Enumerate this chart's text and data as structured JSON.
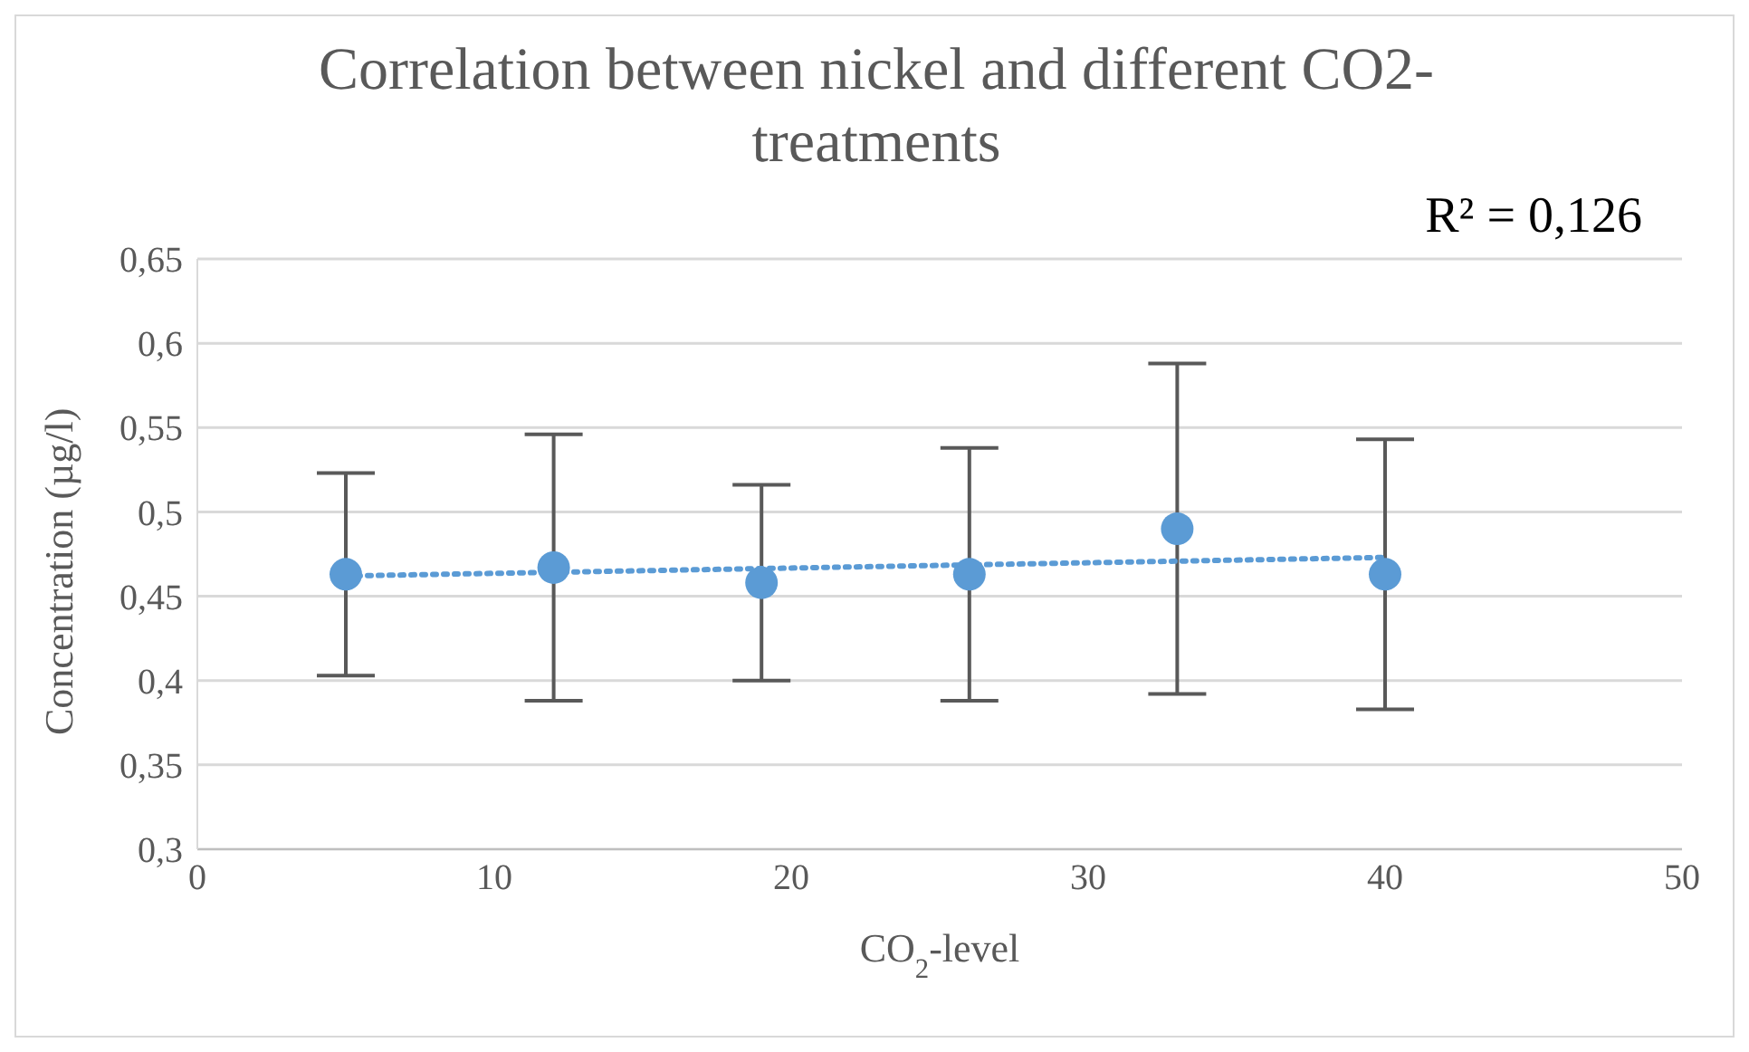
{
  "chart_data": {
    "type": "scatter",
    "title": "Correlation between nickel and different CO2-treatments",
    "xlabel": "CO$_{2}$-level",
    "ylabel": "Concentration (µg/l)",
    "annotations": [
      "R² = 0,126"
    ],
    "series": [
      {
        "color": "#5b9bd5",
        "x": [
          5,
          12,
          19,
          26,
          33,
          40
        ],
        "values": [
          0.463,
          0.467,
          0.458,
          0.463,
          0.49,
          0.463
        ],
        "errors": [
          0.06,
          0.079,
          0.058,
          0.075,
          0.098,
          0.08
        ],
        "marker": "circle"
      },
      {
        "type": "line",
        "color": "#5b9bd5",
        "x": [
          5,
          40
        ],
        "values": [
          0.462,
          0.473
        ],
        "marker": "none",
        "line_style": "dotted"
      }
    ],
    "xlim": [
      0,
      50
    ],
    "xticks": [
      0,
      10,
      20,
      30,
      40,
      50
    ],
    "ylim": [
      0.3,
      0.65
    ],
    "yticks": [
      {
        "value": 0.3,
        "label": "0,3"
      },
      {
        "value": 0.35,
        "label": "0,35"
      },
      {
        "value": 0.4,
        "label": "0,4"
      },
      {
        "value": 0.45,
        "label": "0,45"
      },
      {
        "value": 0.5,
        "label": "0,5"
      },
      {
        "value": 0.55,
        "label": "0,55"
      },
      {
        "value": 0.6,
        "label": "0,6"
      },
      {
        "value": 0.65,
        "label": "0,65"
      }
    ],
    "grid": "y",
    "legend": false
  }
}
